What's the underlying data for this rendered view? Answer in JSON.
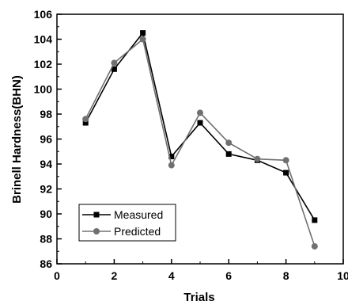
{
  "chart_data": {
    "type": "line",
    "title": "",
    "xlabel": "Trials",
    "ylabel": "Brinell Hardness(BHN)",
    "xlim": [
      0,
      10
    ],
    "ylim": [
      86,
      106
    ],
    "x_ticks": [
      "0",
      "2",
      "4",
      "6",
      "8",
      "10"
    ],
    "y_ticks": [
      "86",
      "88",
      "90",
      "92",
      "94",
      "96",
      "98",
      "100",
      "102",
      "104",
      "106"
    ],
    "grid": false,
    "legend_position": "bottom-left",
    "series": [
      {
        "name": "Measured",
        "marker": "square",
        "color": "#000000",
        "x": [
          1,
          2,
          3,
          4,
          5,
          6,
          7,
          8,
          9
        ],
        "y": [
          97.3,
          101.6,
          104.5,
          94.6,
          97.3,
          94.8,
          94.3,
          93.3,
          89.5
        ]
      },
      {
        "name": "Predicted",
        "marker": "circle",
        "color": "#707070",
        "x": [
          1,
          2,
          3,
          4,
          5,
          6,
          7,
          8,
          9
        ],
        "y": [
          97.6,
          102.1,
          104.0,
          93.9,
          98.1,
          95.7,
          94.4,
          94.3,
          87.4
        ]
      }
    ]
  }
}
